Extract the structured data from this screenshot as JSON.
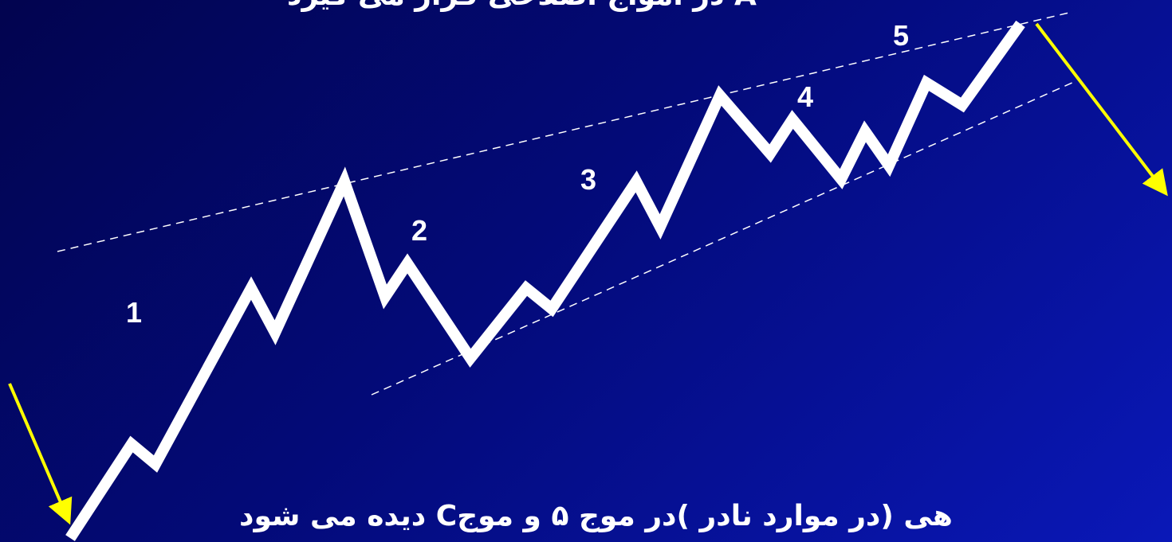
{
  "top_caption": "A در امواج اصلاحی قرار می گیرد",
  "bottom_caption": "هی (در موارد نادر )در موج ۵ و موجC دیده می شود",
  "wave_labels": [
    "1",
    "2",
    "3",
    "4",
    "5"
  ],
  "colors": {
    "background_start": "#02044f",
    "background_end": "#0a18b8",
    "wave_line": "#ffffff",
    "trend_lines": "#ffffff",
    "arrows": "#ffff00"
  }
}
